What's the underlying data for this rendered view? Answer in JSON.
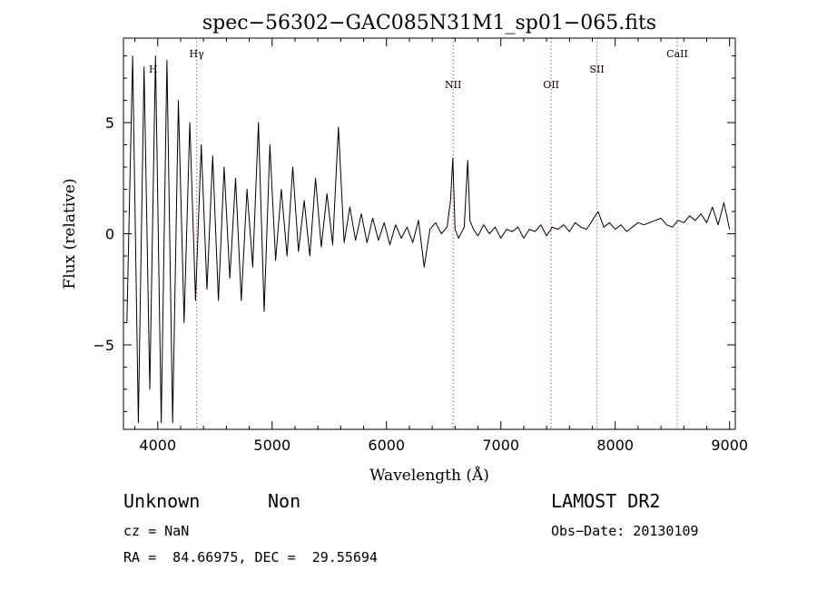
{
  "chart_data": {
    "type": "line",
    "title": "spec−56302−GAC085N31M1_sp01−065.fits",
    "xlabel": "Wavelength (Å)",
    "ylabel": "Flux (relative)",
    "xlim": [
      3700,
      9050
    ],
    "ylim": [
      -8.8,
      8.8
    ],
    "xticks": [
      4000,
      5000,
      6000,
      7000,
      8000,
      9000
    ],
    "yticks": [
      -5,
      0,
      5
    ],
    "ytick_labels": [
      "−5",
      "0",
      "5"
    ],
    "grid": false,
    "line_color": "#000000",
    "marker_color": "#ff0000",
    "reference_lines": [
      {
        "name": "Hγ",
        "x": 4340
      },
      {
        "name": "NII",
        "x": 6583
      },
      {
        "name": "OII",
        "x": 7440
      },
      {
        "name": "SII",
        "x": 7840
      },
      {
        "name": "CaII",
        "x": 8542
      }
    ],
    "partially_visible_label": {
      "name": "H",
      "x": 3960
    },
    "series": [
      {
        "x": [
          3730,
          3780,
          3830,
          3880,
          3930,
          3980,
          4030,
          4080,
          4130,
          4180,
          4230,
          4280,
          4330,
          4380,
          4430,
          4480,
          4530,
          4580,
          4630,
          4680,
          4730,
          4780,
          4830,
          4880,
          4930,
          4980,
          5030,
          5080,
          5130,
          5180,
          5230,
          5280,
          5330,
          5380,
          5430,
          5480,
          5530,
          5580,
          5630,
          5680,
          5730,
          5780,
          5830,
          5880,
          5930,
          5980,
          6030,
          6080,
          6130,
          6180,
          6230,
          6280,
          6330,
          6380,
          6430,
          6480,
          6530,
          6560,
          6580,
          6600,
          6630,
          6680,
          6710,
          6730,
          6760,
          6800,
          6850,
          6900,
          6950,
          7000,
          7050,
          7100,
          7150,
          7200,
          7250,
          7300,
          7350,
          7400,
          7450,
          7500,
          7550,
          7600,
          7650,
          7700,
          7750,
          7800,
          7850,
          7900,
          7950,
          8000,
          8050,
          8100,
          8150,
          8200,
          8250,
          8300,
          8350,
          8400,
          8450,
          8500,
          8550,
          8600,
          8650,
          8700,
          8750,
          8800,
          8850,
          8900,
          8950,
          9000
        ],
        "y": [
          -4,
          8,
          -8.5,
          7.5,
          -7,
          8,
          -8.5,
          7.8,
          -8.5,
          6,
          -4,
          5,
          -3,
          4,
          -2.5,
          3.5,
          -3,
          3,
          -2,
          2.5,
          -3,
          2,
          -1.5,
          5,
          -3.5,
          4,
          -1.2,
          2,
          -1,
          3,
          -0.8,
          1.5,
          -1,
          2.5,
          -0.6,
          1.8,
          -0.5,
          4.8,
          -0.4,
          1.2,
          -0.3,
          0.9,
          -0.4,
          0.7,
          -0.3,
          0.5,
          -0.5,
          0.4,
          -0.2,
          0.3,
          -0.4,
          0.6,
          -1.5,
          0.2,
          0.5,
          0,
          0.3,
          1.5,
          3.4,
          0.2,
          -0.2,
          0.3,
          3.3,
          0.6,
          0.2,
          -0.1,
          0.4,
          0,
          0.3,
          -0.2,
          0.2,
          0.1,
          0.3,
          -0.2,
          0.2,
          0.1,
          0.4,
          -0.1,
          0.3,
          0.2,
          0.4,
          0.1,
          0.5,
          0.3,
          0.2,
          0.6,
          1,
          0.3,
          0.5,
          0.2,
          0.4,
          0.1,
          0.3,
          0.5,
          0.4,
          0.5,
          0.6,
          0.7,
          0.4,
          0.3,
          0.6,
          0.5,
          0.8,
          0.6,
          0.9,
          0.5,
          1.2,
          0.4,
          1.4,
          0.2
        ]
      }
    ]
  },
  "info": {
    "object_class": "Unknown",
    "subclass": "Non",
    "survey": "LAMOST DR2",
    "redshift": "cz = NaN",
    "obs_date": "Obs−Date: 20130109",
    "coords": "RA =  84.66975, DEC =  29.55694"
  }
}
